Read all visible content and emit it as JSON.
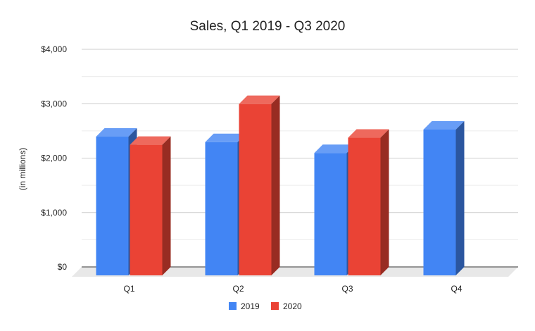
{
  "chart_data": {
    "type": "bar",
    "style": "3d",
    "title": "Sales, Q1 2019 - Q3 2020",
    "xlabel": "",
    "ylabel": "(in millions)",
    "categories": [
      "Q1",
      "Q2",
      "Q3",
      "Q4"
    ],
    "series": [
      {
        "name": "2019",
        "values": [
          2550,
          2450,
          2250,
          2680
        ]
      },
      {
        "name": "2020",
        "values": [
          2400,
          3150,
          2530,
          null
        ]
      }
    ],
    "ylim": [
      0,
      4000
    ],
    "yticks": [
      0,
      1000,
      2000,
      3000,
      4000
    ],
    "ytick_labels": [
      "$0",
      "$1,000",
      "$2,000",
      "$3,000",
      "$4,000"
    ],
    "grid": true,
    "legend_position": "bottom"
  },
  "colors": {
    "series": [
      "#4285f4",
      "#ea4335"
    ]
  }
}
